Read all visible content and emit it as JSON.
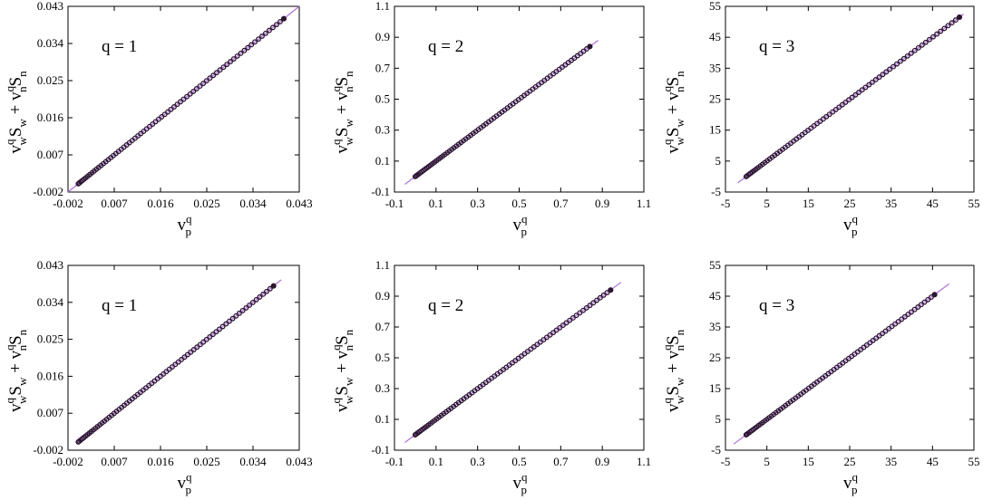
{
  "chart_data": [
    {
      "type": "scatter",
      "q_label": "q = 1",
      "ticks": [
        "-0.002",
        "0.007",
        "0.016",
        "0.025",
        "0.034",
        "0.043"
      ],
      "xlim": [
        -0.002,
        0.043
      ],
      "ylim": [
        -0.002,
        0.043
      ],
      "xlabel": {
        "base": "v",
        "sup": "q",
        "sub": "p"
      },
      "ylabel": "v^q_w S_w + v^q_n S_n",
      "reference_line": {
        "color": "#b070d8",
        "from": [
          -0.002,
          -0.002
        ],
        "to": [
          0.043,
          0.043
        ]
      },
      "points": {
        "from": 0.0,
        "to": 0.04
      },
      "marker_color": "#2a1530"
    },
    {
      "type": "scatter",
      "q_label": "q = 2",
      "ticks": [
        "-0.1",
        "0.1",
        "0.3",
        "0.5",
        "0.7",
        "0.9",
        "1.1"
      ],
      "xlim": [
        -0.1,
        1.1
      ],
      "ylim": [
        -0.1,
        1.1
      ],
      "xlabel": {
        "base": "v",
        "sup": "q",
        "sub": "p"
      },
      "ylabel": "v^q_w S_w + v^q_n S_n",
      "reference_line": {
        "color": "#b070d8",
        "from": [
          -0.05,
          -0.05
        ],
        "to": [
          0.88,
          0.88
        ]
      },
      "points": {
        "from": 0.0,
        "to": 0.84
      },
      "marker_color": "#2a1530"
    },
    {
      "type": "scatter",
      "q_label": "q = 3",
      "ticks": [
        "-5",
        "5",
        "15",
        "25",
        "35",
        "45",
        "55"
      ],
      "xlim": [
        -5,
        55
      ],
      "ylim": [
        -5,
        55
      ],
      "xlabel": {
        "base": "v",
        "sup": "q",
        "sub": "p"
      },
      "ylabel": "v^q_w S_w + v^q_n S_n",
      "reference_line": {
        "color": "#b070d8",
        "from": [
          -2,
          -2
        ],
        "to": [
          52.5,
          52.5
        ]
      },
      "points": {
        "from": 0.0,
        "to": 51.5
      },
      "marker_color": "#2a1530"
    },
    {
      "type": "scatter",
      "q_label": "q = 1",
      "ticks": [
        "-0.002",
        "0.007",
        "0.016",
        "0.025",
        "0.034",
        "0.043"
      ],
      "xlim": [
        -0.002,
        0.043
      ],
      "ylim": [
        -0.002,
        0.043
      ],
      "xlabel": {
        "base": "v",
        "sup": "q",
        "sub": "p"
      },
      "ylabel": "v^q_w S_w + v^q_n S_n",
      "reference_line": {
        "color": "#b070d8",
        "from": [
          0.0,
          0.0
        ],
        "to": [
          0.0395,
          0.0395
        ]
      },
      "points": {
        "from": 0.0,
        "to": 0.038
      },
      "marker_color": "#2a1530"
    },
    {
      "type": "scatter",
      "q_label": "q = 2",
      "ticks": [
        "-0.1",
        "0.1",
        "0.3",
        "0.5",
        "0.7",
        "0.9",
        "1.1"
      ],
      "xlim": [
        -0.1,
        1.1
      ],
      "ylim": [
        -0.1,
        1.1
      ],
      "xlabel": {
        "base": "v",
        "sup": "q",
        "sub": "p"
      },
      "ylabel": "v^q_w S_w + v^q_n S_n",
      "reference_line": {
        "color": "#b070d8",
        "from": [
          -0.05,
          -0.05
        ],
        "to": [
          0.99,
          0.99
        ]
      },
      "points": {
        "from": 0.0,
        "to": 0.94
      },
      "marker_color": "#2a1530"
    },
    {
      "type": "scatter",
      "q_label": "q = 3",
      "ticks": [
        "-5",
        "5",
        "15",
        "25",
        "35",
        "45",
        "55"
      ],
      "xlim": [
        -5,
        55
      ],
      "ylim": [
        -5,
        55
      ],
      "xlabel": {
        "base": "v",
        "sup": "q",
        "sub": "p"
      },
      "ylabel": "v^q_w S_w + v^q_n S_n",
      "reference_line": {
        "color": "#b070d8",
        "from": [
          -3,
          -3
        ],
        "to": [
          49,
          49
        ]
      },
      "points": {
        "from": 0.0,
        "to": 45.5
      },
      "marker_color": "#2a1530"
    }
  ]
}
